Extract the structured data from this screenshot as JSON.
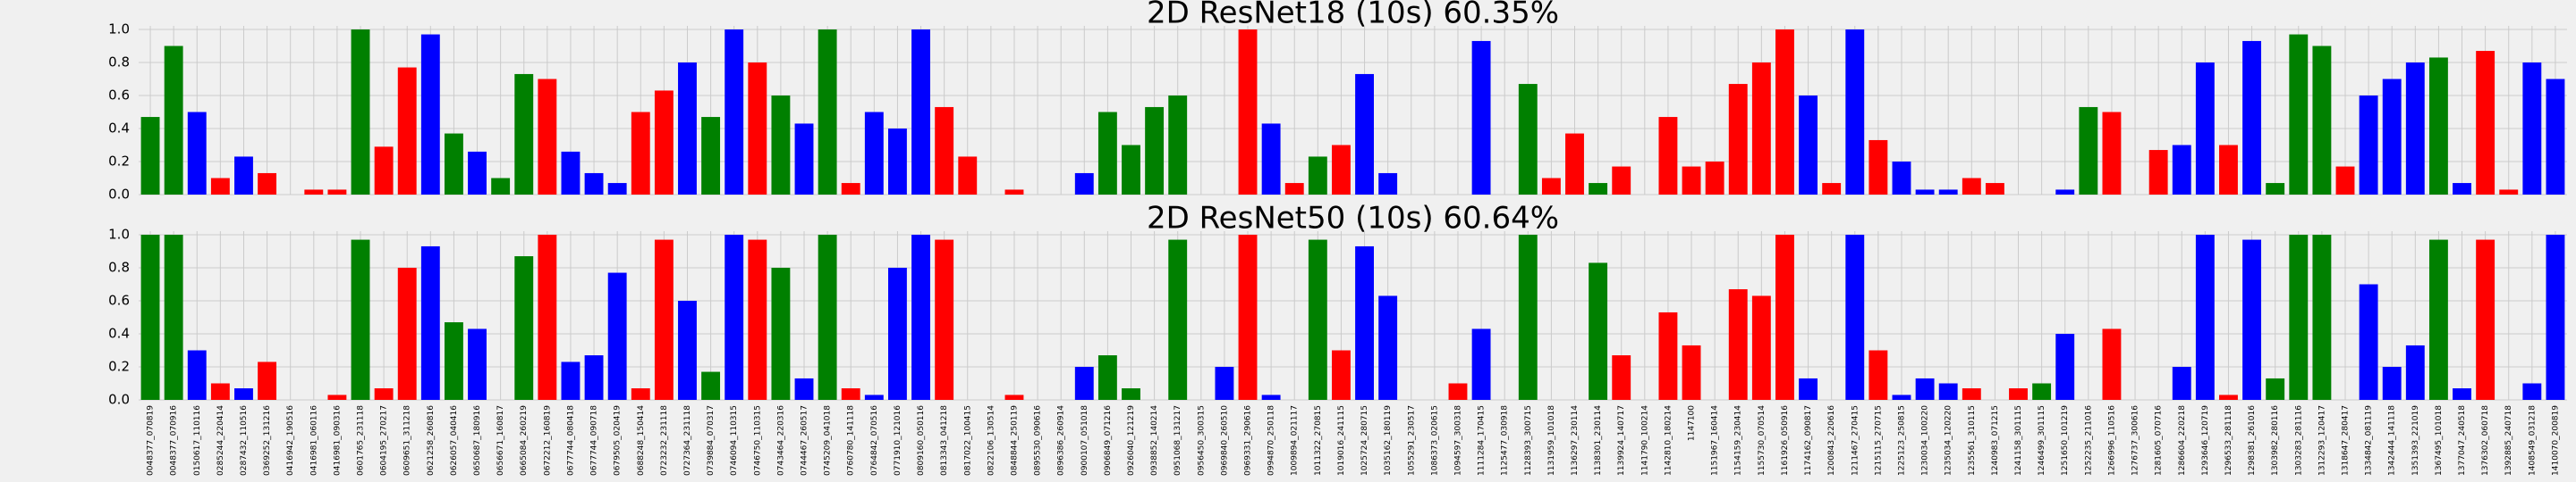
{
  "chart_data": [
    {
      "type": "bar",
      "title": "2D ResNet18 (10s) 60.35%",
      "values": [
        0.47,
        0.9,
        0.5,
        0.1,
        0.23,
        0.13,
        0,
        0.03,
        0.03,
        1,
        0.29,
        0.77,
        0.97,
        0.37,
        0.26,
        0.1,
        0.73,
        0.7,
        0.26,
        0.13,
        0.07,
        0.5,
        0.63,
        0.8,
        0.47,
        1,
        0.8,
        0.6,
        0.43,
        1,
        0.07,
        0.5,
        0.4,
        1,
        0.53,
        0.23,
        0,
        0.03,
        0,
        0,
        0.13,
        0.5,
        0.3,
        0.53,
        0.6,
        0,
        0,
        1,
        0.43,
        0.07,
        0.23,
        0.3,
        0.73,
        0.13,
        0,
        0,
        0,
        0.93,
        0,
        0.67,
        0.1,
        0.37,
        0.07,
        0.17,
        0,
        0.47,
        0.17,
        0.2,
        0.67,
        0.8,
        1,
        0.6,
        0.07,
        1,
        0.33,
        0.2,
        0.03,
        0.03,
        0.1,
        0.07,
        0,
        0,
        0.03,
        0.53,
        0.5,
        0,
        0.27,
        0.3,
        0.8,
        0.3,
        0.93,
        0.07,
        0.97,
        0.9,
        0.17,
        0.6,
        0.7,
        0.8,
        0.83,
        0.07,
        0.87,
        0.03,
        0.8,
        0.7
      ],
      "colors": [
        "green",
        "green",
        "blue",
        "red",
        "blue",
        "red",
        "blue",
        "red",
        "red",
        "green",
        "red",
        "red",
        "blue",
        "green",
        "blue",
        "green",
        "green",
        "red",
        "blue",
        "blue",
        "blue",
        "red",
        "red",
        "blue",
        "green",
        "blue",
        "red",
        "green",
        "blue",
        "green",
        "red",
        "blue",
        "blue",
        "blue",
        "red",
        "red",
        "red",
        "red",
        "red",
        "blue",
        "blue",
        "green",
        "green",
        "green",
        "green",
        "green",
        "blue",
        "red",
        "blue",
        "red",
        "green",
        "red",
        "blue",
        "blue",
        "blue",
        "red",
        "red",
        "blue",
        "green",
        "green",
        "red",
        "red",
        "green",
        "red",
        "red",
        "red",
        "red",
        "red",
        "red",
        "red",
        "red",
        "blue",
        "red",
        "blue",
        "red",
        "blue",
        "blue",
        "blue",
        "red",
        "red",
        "red",
        "green",
        "blue",
        "green",
        "red",
        "red",
        "red",
        "blue",
        "blue",
        "red",
        "blue",
        "green",
        "green",
        "green",
        "red",
        "blue",
        "blue",
        "blue",
        "green",
        "blue",
        "red",
        "red",
        "blue",
        "blue"
      ],
      "ylim": [
        0,
        1
      ],
      "yticks": [
        {
          "value": 0,
          "label": "0.0"
        },
        0.2,
        0.4,
        0.6,
        0.8,
        {
          "value": 1,
          "label": "1.0"
        }
      ],
      "grid": true
    },
    {
      "type": "bar",
      "title": "2D ResNet50 (10s) 60.64%",
      "categories": [
        "0048377_070819",
        "0048377_070916",
        "0150617_110116",
        "0285244_220414",
        "0287432_110516",
        "0369252_131216",
        "0416942_190516",
        "0416981_060116",
        "0416981_090316",
        "0601765_231118",
        "0604195_270217",
        "0609651_311218",
        "0621258_260816",
        "0626057_040416",
        "0650687_180916",
        "0656671_160817",
        "0665084_260219",
        "0672212_160819",
        "0677744_080418",
        "0677744_090718",
        "0679505_020419",
        "0688248_150414",
        "0723232_231118",
        "0727364_231118",
        "0739884_070317",
        "0746094_110315",
        "0746750_110315",
        "0743464_220316",
        "0744467_260517",
        "0745209_041018",
        "0760780_141118",
        "0764842_070516",
        "0771910_121016",
        "0809160_050116",
        "0813343_041218",
        "0817022_100415",
        "0822106_130514",
        "0848844_250119",
        "0895530_090616",
        "0896386_260914",
        "0900107_051018",
        "0906849_071216",
        "0926040_121219",
        "0938852_140214",
        "0951068_131217",
        "0956450_300315",
        "0969840_260510",
        "0969331_290616",
        "0994870_250118",
        "1009894_021117",
        "1011322_270815",
        "1019016_241115",
        "1025724_280715",
        "1035162_180119",
        "1055291_230517",
        "1086373_020615",
        "1094597_300318",
        "1111284_170415",
        "1125477_030918",
        "1128393_300715",
        "1131959_101018",
        "1136297_230114",
        "1138301_230114",
        "1139924_140717",
        "1141790_100214",
        "1142810_180214",
        "1147100",
        "1151967_160414",
        "1154159_230414",
        "1155730_070514",
        "1161926_050916",
        "1174162_090817",
        "1200843_220616",
        "1211467_270415",
        "1215115_270715",
        "1225123_250815",
        "1230034_100220",
        "1235034_120220",
        "1235561_310115",
        "1240983_071215",
        "1241158_301115",
        "1246499_301115",
        "1251650_101219",
        "1252235_211016",
        "1266996_110516",
        "1276737_300616",
        "1281605_070716",
        "1286604_220218",
        "1293646_120719",
        "1296533_281118",
        "1298381_261016",
        "1303982_280116",
        "1303283_281116",
        "1312293_120417",
        "1318647_280417",
        "1334842_081119",
        "1342444_141118",
        "1351393_221019",
        "1367495_101018",
        "1377047_240518",
        "1376302_060718",
        "1392885_240718",
        "1408549_031218",
        "1410070_200819"
      ],
      "values": [
        1,
        1,
        0.3,
        0.1,
        0.07,
        0.23,
        0,
        0,
        0.03,
        0.97,
        0.07,
        0.8,
        0.93,
        0.47,
        0.43,
        0,
        0.87,
        1,
        0.23,
        0.27,
        0.77,
        0.07,
        0.97,
        0.6,
        0.17,
        1,
        0.97,
        0.8,
        0.13,
        1,
        0.07,
        0.03,
        0.8,
        1,
        0.97,
        0,
        0,
        0.03,
        0,
        0,
        0.2,
        0.27,
        0.07,
        0,
        0.97,
        0,
        0.2,
        1,
        0.03,
        0,
        0.97,
        0.3,
        0.93,
        0.63,
        0,
        0,
        0.1,
        0.43,
        0,
        1,
        0,
        0,
        0.83,
        0.27,
        0,
        0.53,
        0.33,
        0,
        0.67,
        0.63,
        1,
        0.13,
        0,
        1,
        0.3,
        0.03,
        0.13,
        0.1,
        0.07,
        0,
        0.07,
        0.1,
        0.4,
        0,
        0.43,
        0,
        0,
        0.2,
        1,
        0.03,
        0.97,
        0.13,
        1,
        1,
        0,
        0.7,
        0.2,
        0.33,
        0.97,
        0.07,
        0.97,
        0,
        0.1,
        1
      ],
      "colors": [
        "green",
        "green",
        "blue",
        "red",
        "blue",
        "red",
        "blue",
        "red",
        "red",
        "green",
        "red",
        "red",
        "blue",
        "green",
        "blue",
        "green",
        "green",
        "red",
        "blue",
        "blue",
        "blue",
        "red",
        "red",
        "blue",
        "green",
        "blue",
        "red",
        "green",
        "blue",
        "green",
        "red",
        "blue",
        "blue",
        "blue",
        "red",
        "red",
        "red",
        "red",
        "red",
        "blue",
        "blue",
        "green",
        "green",
        "green",
        "green",
        "green",
        "blue",
        "red",
        "blue",
        "red",
        "green",
        "red",
        "blue",
        "blue",
        "blue",
        "red",
        "red",
        "blue",
        "green",
        "green",
        "red",
        "red",
        "green",
        "red",
        "red",
        "red",
        "red",
        "red",
        "red",
        "red",
        "red",
        "blue",
        "red",
        "blue",
        "red",
        "blue",
        "blue",
        "blue",
        "red",
        "red",
        "red",
        "green",
        "blue",
        "green",
        "red",
        "red",
        "red",
        "blue",
        "blue",
        "red",
        "blue",
        "green",
        "green",
        "green",
        "red",
        "blue",
        "blue",
        "blue",
        "green",
        "blue",
        "red",
        "red",
        "blue",
        "blue"
      ],
      "ylim": [
        0,
        1
      ],
      "yticks": [
        {
          "value": 0,
          "label": "0.0"
        },
        0.2,
        0.4,
        0.6,
        0.8,
        {
          "value": 1,
          "label": "1.0"
        }
      ],
      "grid": true
    }
  ]
}
